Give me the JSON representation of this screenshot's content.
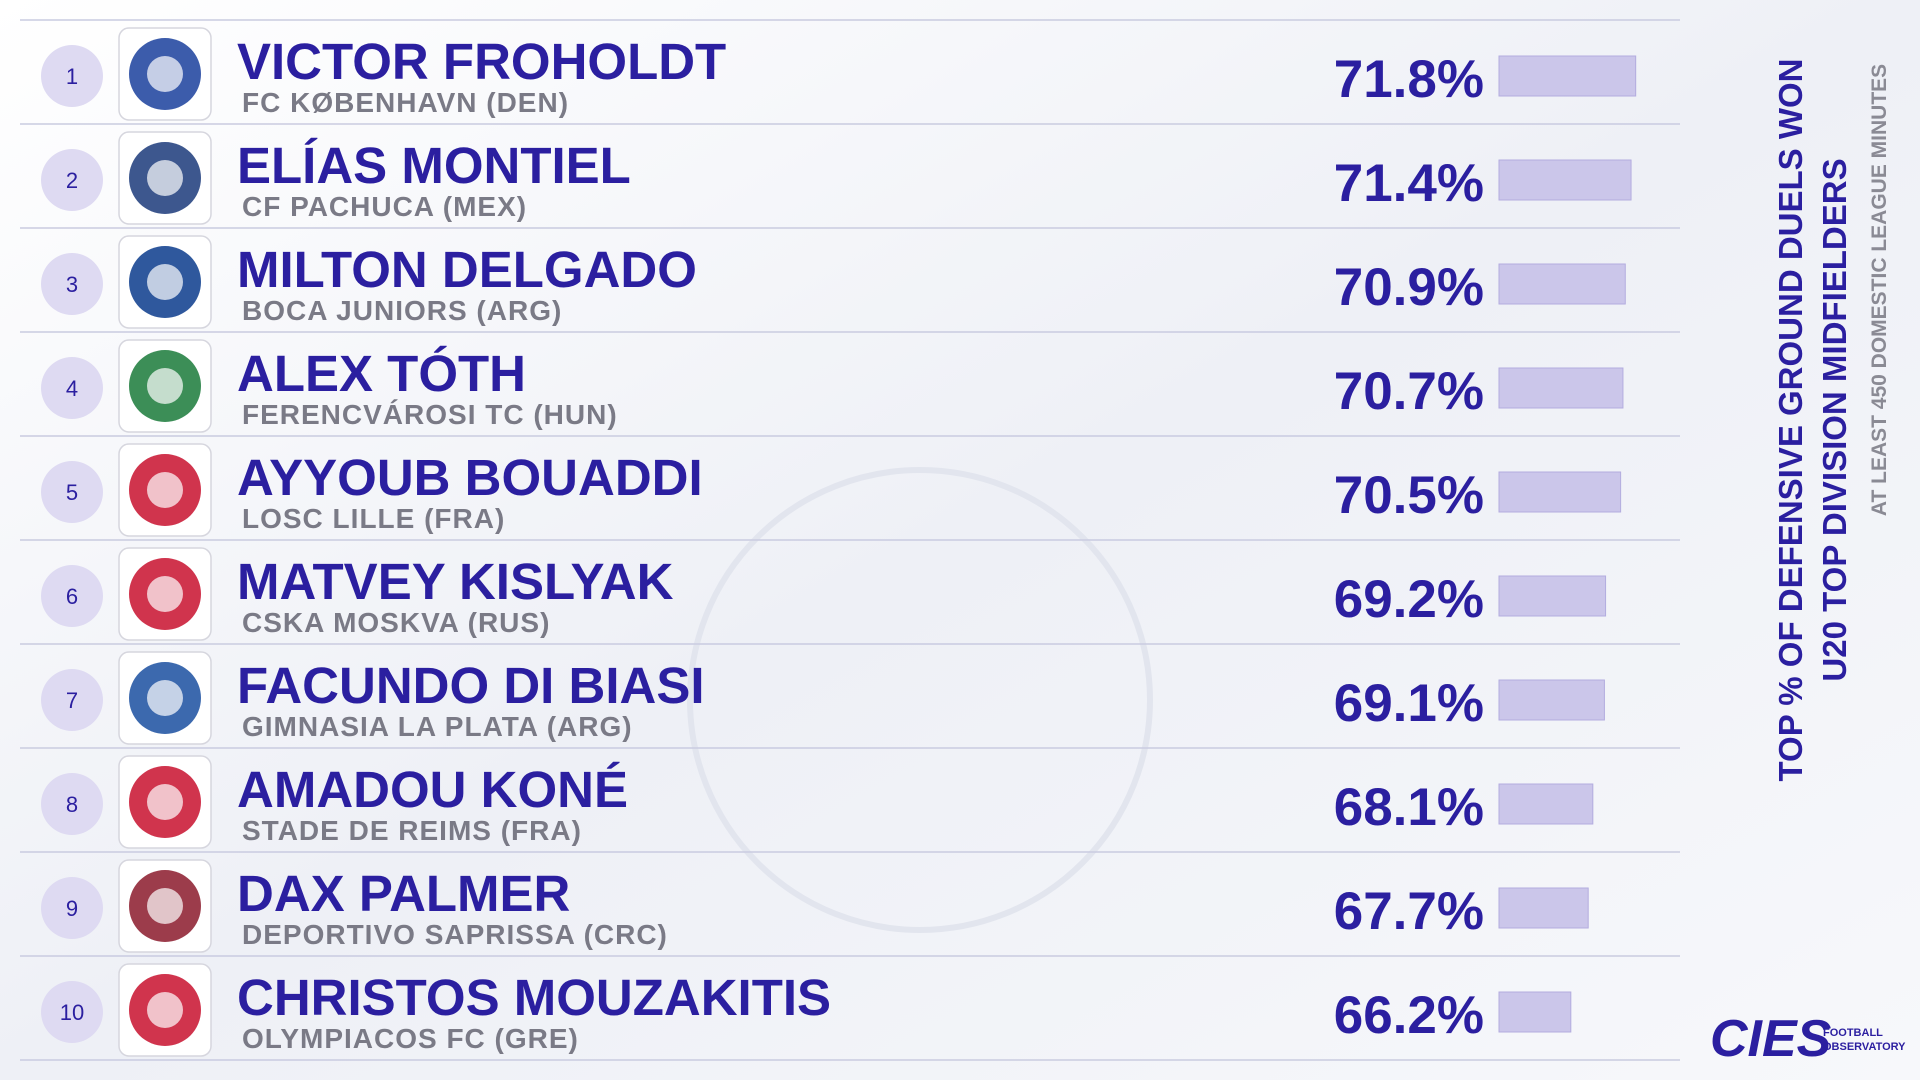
{
  "chart_data": {
    "type": "bar",
    "title": "TOP % OF DEFENSIVE GROUND DUELS WON",
    "subtitle": "U20 TOP DIVISION MIDFIELDERS",
    "note": "AT LEAST 450 DOMESTIC LEAGUE MINUTES",
    "ranks": [
      1,
      2,
      3,
      4,
      5,
      6,
      7,
      8,
      9,
      10
    ],
    "categories": [
      "VICTOR FROHOLDT",
      "ELÍAS MONTIEL",
      "MILTON DELGADO",
      "ALEX TÓTH",
      "AYYOUB BOUADDI",
      "MATVEY KISLYAK",
      "FACUNDO DI BIASI",
      "AMADOU KONÉ",
      "DAX PALMER",
      "CHRISTOS MOUZAKITIS"
    ],
    "clubs": [
      "FC KØBENHAVN (DEN)",
      "CF PACHUCA (MEX)",
      "BOCA JUNIORS (ARG)",
      "FERENCVÁROSI TC (HUN)",
      "LOSC LILLE (FRA)",
      "CSKA MOSKVA (RUS)",
      "GIMNASIA LA PLATA (ARG)",
      "STADE DE REIMS (FRA)",
      "DEPORTIVO SAPRISSA (CRC)",
      "OLYMPIACOS FC (GRE)"
    ],
    "values": [
      71.8,
      71.4,
      70.9,
      70.7,
      70.5,
      69.2,
      69.1,
      68.1,
      67.7,
      66.2
    ],
    "value_labels": [
      "71.8%",
      "71.4%",
      "70.9%",
      "70.7%",
      "70.5%",
      "69.2%",
      "69.1%",
      "68.1%",
      "67.7%",
      "66.2%"
    ],
    "xlim": [
      60,
      72
    ],
    "color": "#cbc6ea",
    "brand": "CIES",
    "brand_sub": [
      "FOOTBALL",
      "OBSERVATORY"
    ]
  }
}
